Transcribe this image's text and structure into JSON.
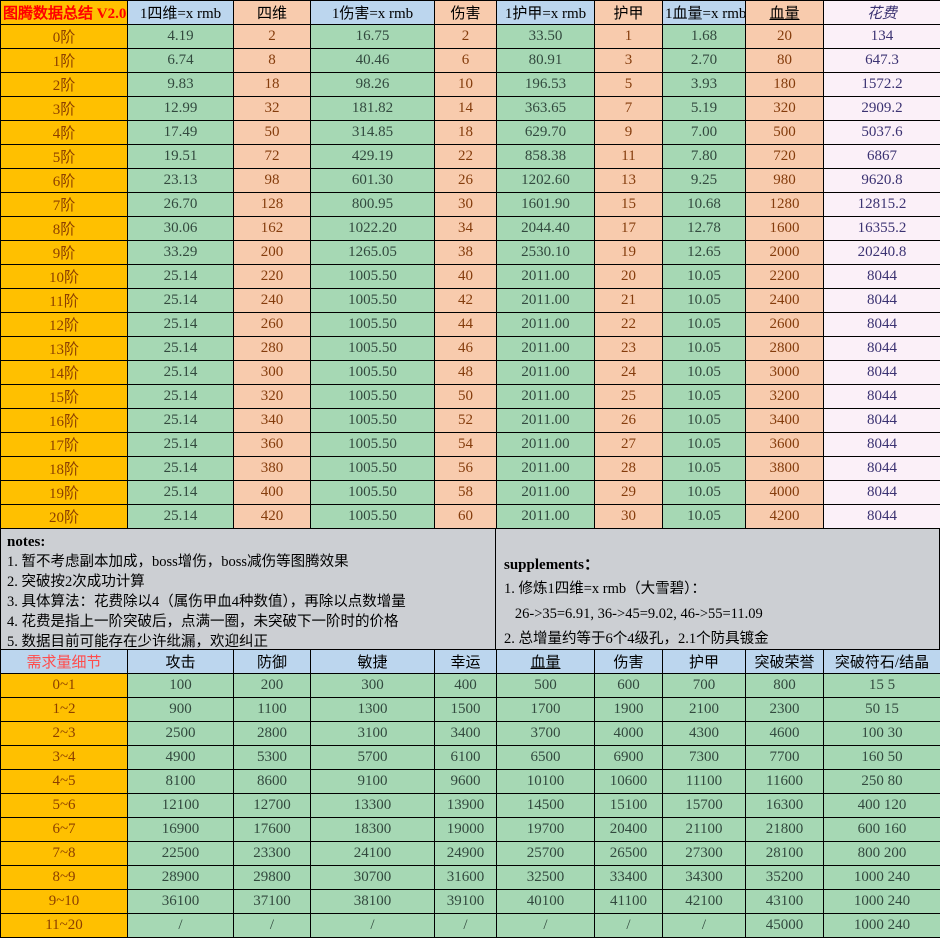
{
  "top_table": {
    "title": "图腾数据总结 V2.0",
    "headers": [
      "1四维=x rmb",
      "四维",
      "1伤害=x rmb",
      "伤害",
      "1护甲=x rmb",
      "护甲",
      "1血量=x rmb",
      "血量",
      "花费"
    ],
    "rows": [
      {
        "label": "0阶",
        "values": [
          "4.19",
          "2",
          "16.75",
          "2",
          "33.50",
          "1",
          "1.68",
          "20",
          "134"
        ]
      },
      {
        "label": "1阶",
        "values": [
          "6.74",
          "8",
          "40.46",
          "6",
          "80.91",
          "3",
          "2.70",
          "80",
          "647.3"
        ]
      },
      {
        "label": "2阶",
        "values": [
          "9.83",
          "18",
          "98.26",
          "10",
          "196.53",
          "5",
          "3.93",
          "180",
          "1572.2"
        ]
      },
      {
        "label": "3阶",
        "values": [
          "12.99",
          "32",
          "181.82",
          "14",
          "363.65",
          "7",
          "5.19",
          "320",
          "2909.2"
        ]
      },
      {
        "label": "4阶",
        "values": [
          "17.49",
          "50",
          "314.85",
          "18",
          "629.70",
          "9",
          "7.00",
          "500",
          "5037.6"
        ]
      },
      {
        "label": "5阶",
        "values": [
          "19.51",
          "72",
          "429.19",
          "22",
          "858.38",
          "11",
          "7.80",
          "720",
          "6867"
        ]
      },
      {
        "label": "6阶",
        "values": [
          "23.13",
          "98",
          "601.30",
          "26",
          "1202.60",
          "13",
          "9.25",
          "980",
          "9620.8"
        ]
      },
      {
        "label": "7阶",
        "values": [
          "26.70",
          "128",
          "800.95",
          "30",
          "1601.90",
          "15",
          "10.68",
          "1280",
          "12815.2"
        ]
      },
      {
        "label": "8阶",
        "values": [
          "30.06",
          "162",
          "1022.20",
          "34",
          "2044.40",
          "17",
          "12.78",
          "1600",
          "16355.2"
        ]
      },
      {
        "label": "9阶",
        "values": [
          "33.29",
          "200",
          "1265.05",
          "38",
          "2530.10",
          "19",
          "12.65",
          "2000",
          "20240.8"
        ]
      },
      {
        "label": "10阶",
        "values": [
          "25.14",
          "220",
          "1005.50",
          "40",
          "2011.00",
          "20",
          "10.05",
          "2200",
          "8044"
        ]
      },
      {
        "label": "11阶",
        "values": [
          "25.14",
          "240",
          "1005.50",
          "42",
          "2011.00",
          "21",
          "10.05",
          "2400",
          "8044"
        ]
      },
      {
        "label": "12阶",
        "values": [
          "25.14",
          "260",
          "1005.50",
          "44",
          "2011.00",
          "22",
          "10.05",
          "2600",
          "8044"
        ]
      },
      {
        "label": "13阶",
        "values": [
          "25.14",
          "280",
          "1005.50",
          "46",
          "2011.00",
          "23",
          "10.05",
          "2800",
          "8044"
        ]
      },
      {
        "label": "14阶",
        "values": [
          "25.14",
          "300",
          "1005.50",
          "48",
          "2011.00",
          "24",
          "10.05",
          "3000",
          "8044"
        ]
      },
      {
        "label": "15阶",
        "values": [
          "25.14",
          "320",
          "1005.50",
          "50",
          "2011.00",
          "25",
          "10.05",
          "3200",
          "8044"
        ]
      },
      {
        "label": "16阶",
        "values": [
          "25.14",
          "340",
          "1005.50",
          "52",
          "2011.00",
          "26",
          "10.05",
          "3400",
          "8044"
        ]
      },
      {
        "label": "17阶",
        "values": [
          "25.14",
          "360",
          "1005.50",
          "54",
          "2011.00",
          "27",
          "10.05",
          "3600",
          "8044"
        ]
      },
      {
        "label": "18阶",
        "values": [
          "25.14",
          "380",
          "1005.50",
          "56",
          "2011.00",
          "28",
          "10.05",
          "3800",
          "8044"
        ]
      },
      {
        "label": "19阶",
        "values": [
          "25.14",
          "400",
          "1005.50",
          "58",
          "2011.00",
          "29",
          "10.05",
          "4000",
          "8044"
        ]
      },
      {
        "label": "20阶",
        "values": [
          "25.14",
          "420",
          "1005.50",
          "60",
          "2011.00",
          "30",
          "10.05",
          "4200",
          "8044"
        ]
      }
    ]
  },
  "notes": {
    "title": "notes:",
    "lines": [
      "1. 暂不考虑副本加成，boss增伤，boss减伤等图腾效果",
      "2. 突破按2次成功计算",
      "3. 具体算法：花费除以4（属伤甲血4种数值），再除以点数增量",
      "4. 花费是指上一阶突破后，点满一圈，未突破下一阶时的价格",
      "5. 数据目前可能存在少许纰漏，欢迎纠正"
    ]
  },
  "supplements": {
    "title": "supplements：",
    "lines": [
      "1. 修炼1四维=x rmb（大雪碧）：",
      "   26->35=6.91, 36->45=9.02, 46->55=11.09",
      "2. 总增量约等于6个4级孔，2.1个防具镀金"
    ]
  },
  "bottom_table": {
    "title": "需求量细节",
    "headers": [
      "攻击",
      "防御",
      "敏捷",
      "幸运",
      "血量",
      "伤害",
      "护甲",
      "突破荣誉",
      "突破符石/结晶"
    ],
    "rows": [
      {
        "label": "0~1",
        "values": [
          "100",
          "200",
          "300",
          "400",
          "500",
          "600",
          "700",
          "800",
          "15 5"
        ]
      },
      {
        "label": "1~2",
        "values": [
          "900",
          "1100",
          "1300",
          "1500",
          "1700",
          "1900",
          "2100",
          "2300",
          "50 15"
        ]
      },
      {
        "label": "2~3",
        "values": [
          "2500",
          "2800",
          "3100",
          "3400",
          "3700",
          "4000",
          "4300",
          "4600",
          "100 30"
        ]
      },
      {
        "label": "3~4",
        "values": [
          "4900",
          "5300",
          "5700",
          "6100",
          "6500",
          "6900",
          "7300",
          "7700",
          "160 50"
        ]
      },
      {
        "label": "4~5",
        "values": [
          "8100",
          "8600",
          "9100",
          "9600",
          "10100",
          "10600",
          "11100",
          "11600",
          "250 80"
        ]
      },
      {
        "label": "5~6",
        "values": [
          "12100",
          "12700",
          "13300",
          "13900",
          "14500",
          "15100",
          "15700",
          "16300",
          "400 120"
        ]
      },
      {
        "label": "6~7",
        "values": [
          "16900",
          "17600",
          "18300",
          "19000",
          "19700",
          "20400",
          "21100",
          "21800",
          "600 160"
        ]
      },
      {
        "label": "7~8",
        "values": [
          "22500",
          "23300",
          "24100",
          "24900",
          "25700",
          "26500",
          "27300",
          "28100",
          "800 200"
        ]
      },
      {
        "label": "8~9",
        "values": [
          "28900",
          "29800",
          "30700",
          "31600",
          "32500",
          "33400",
          "34300",
          "35200",
          "1000 240"
        ]
      },
      {
        "label": "9~10",
        "values": [
          "36100",
          "37100",
          "38100",
          "39100",
          "40100",
          "41100",
          "42100",
          "43100",
          "1000 240"
        ]
      },
      {
        "label": "11~20",
        "values": [
          "/",
          "/",
          "/",
          "/",
          "/",
          "/",
          "/",
          "45000",
          "1000 240"
        ]
      }
    ]
  },
  "colors": {
    "row_label_bg": "#FFC000",
    "rmb_cell_bg": "#A6D8B4",
    "count_cell_bg": "#F8CBAD",
    "cost_cell_bg": "#FBF0F8",
    "header_blue_bg": "#BCD6EE",
    "notes_bg": "#CCCFD3",
    "title_text": "#FF0000",
    "bottom_title_text": "#FF4C4C",
    "label_text": "#8C3F00",
    "green_text": "#32493E",
    "peach_text": "#843C0C",
    "cost_text": "#3B3272"
  }
}
